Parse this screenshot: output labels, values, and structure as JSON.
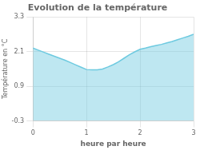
{
  "chart_data": {
    "type": "area",
    "title": "Evolution de la température",
    "xlabel": "heure par heure",
    "ylabel": "Température en °C",
    "x": [
      0,
      0.1,
      0.2,
      0.3,
      0.4,
      0.5,
      0.6,
      0.7,
      0.8,
      0.9,
      1.0,
      1.1,
      1.2,
      1.3,
      1.4,
      1.5,
      1.6,
      1.7,
      1.8,
      1.9,
      2.0,
      2.1,
      2.2,
      2.3,
      2.4,
      2.5,
      2.6,
      2.7,
      2.8,
      2.9,
      3.0
    ],
    "values": [
      2.22,
      2.15,
      2.08,
      2.01,
      1.94,
      1.87,
      1.8,
      1.72,
      1.64,
      1.56,
      1.48,
      1.47,
      1.47,
      1.5,
      1.57,
      1.65,
      1.75,
      1.87,
      1.99,
      2.09,
      2.18,
      2.22,
      2.27,
      2.31,
      2.35,
      2.4,
      2.45,
      2.51,
      2.57,
      2.63,
      2.7
    ],
    "color": "#6ecae0",
    "xlim": [
      0,
      3
    ],
    "ylim": [
      -0.3,
      3.3
    ],
    "xticks": [
      0,
      1,
      2,
      3
    ],
    "yticks": [
      -0.3,
      0.9,
      2.1,
      3.3
    ],
    "grid": true
  }
}
